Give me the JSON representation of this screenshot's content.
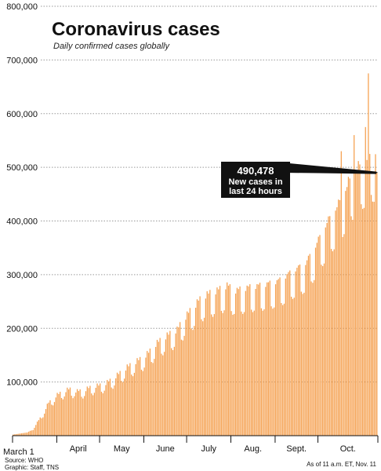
{
  "chart_data": {
    "type": "bar",
    "title": "Coronavirus cases",
    "subtitle": "Daily confirmed cases globally",
    "bar_color": "#f5a04f",
    "grid": "dotted horizontal",
    "ylim": [
      0,
      800000
    ],
    "y_ticks": [
      {
        "value": 100000,
        "label": "100,000"
      },
      {
        "value": 200000,
        "label": "200,000"
      },
      {
        "value": 300000,
        "label": "300,000"
      },
      {
        "value": 400000,
        "label": "400,000"
      },
      {
        "value": 500000,
        "label": "500,000"
      },
      {
        "value": 600000,
        "label": "600,000"
      },
      {
        "value": 700000,
        "label": "700,000"
      },
      {
        "value": 800000,
        "label": "800,000"
      }
    ],
    "x_start_label": "March 1",
    "month_labels": [
      {
        "label": "April",
        "day_index": 31
      },
      {
        "label": "May",
        "day_index": 61
      },
      {
        "label": "June",
        "day_index": 92
      },
      {
        "label": "July",
        "day_index": 122
      },
      {
        "label": "Aug.",
        "day_index": 153
      },
      {
        "label": "Sept.",
        "day_index": 184
      },
      {
        "label": "Oct.",
        "day_index": 214
      }
    ],
    "date_range": [
      "2020-03-01",
      "2020-11-11"
    ],
    "anchors": [
      [
        0,
        2000
      ],
      [
        10,
        6000
      ],
      [
        14,
        12000
      ],
      [
        20,
        35000
      ],
      [
        25,
        58000
      ],
      [
        30,
        70000
      ],
      [
        35,
        78000
      ],
      [
        40,
        82000
      ],
      [
        45,
        78000
      ],
      [
        50,
        80000
      ],
      [
        55,
        86000
      ],
      [
        60,
        88000
      ],
      [
        65,
        92000
      ],
      [
        70,
        100000
      ],
      [
        75,
        110000
      ],
      [
        80,
        120000
      ],
      [
        85,
        128000
      ],
      [
        90,
        135000
      ],
      [
        95,
        145000
      ],
      [
        100,
        160000
      ],
      [
        105,
        170000
      ],
      [
        110,
        178000
      ],
      [
        115,
        185000
      ],
      [
        120,
        205000
      ],
      [
        125,
        220000
      ],
      [
        130,
        235000
      ],
      [
        135,
        245000
      ],
      [
        140,
        250000
      ],
      [
        145,
        255000
      ],
      [
        150,
        262000
      ],
      [
        155,
        252000
      ],
      [
        160,
        255000
      ],
      [
        165,
        258000
      ],
      [
        170,
        260000
      ],
      [
        175,
        262000
      ],
      [
        180,
        265000
      ],
      [
        185,
        268000
      ],
      [
        190,
        275000
      ],
      [
        195,
        285000
      ],
      [
        200,
        292000
      ],
      [
        205,
        300000
      ],
      [
        210,
        320000
      ],
      [
        215,
        345000
      ],
      [
        220,
        370000
      ],
      [
        225,
        390000
      ],
      [
        230,
        410000
      ],
      [
        235,
        440000
      ],
      [
        240,
        460000
      ],
      [
        245,
        475000
      ],
      [
        251,
        490478
      ]
    ],
    "highlight": {
      "value": 490478,
      "label": "490,478",
      "text_line1": "New cases in",
      "text_line2": "last 24 hours"
    },
    "spikes": [
      {
        "day_index": 230,
        "value": 530000
      },
      {
        "day_index": 239,
        "value": 560000
      },
      {
        "day_index": 247,
        "value": 575000
      },
      {
        "day_index": 249,
        "value": 675000
      }
    ]
  },
  "footer": {
    "source": "Source: WHO",
    "graphic": "Graphic: Staff, TNS",
    "as_of": "As of 11 a.m. ET, Nov. 11"
  }
}
